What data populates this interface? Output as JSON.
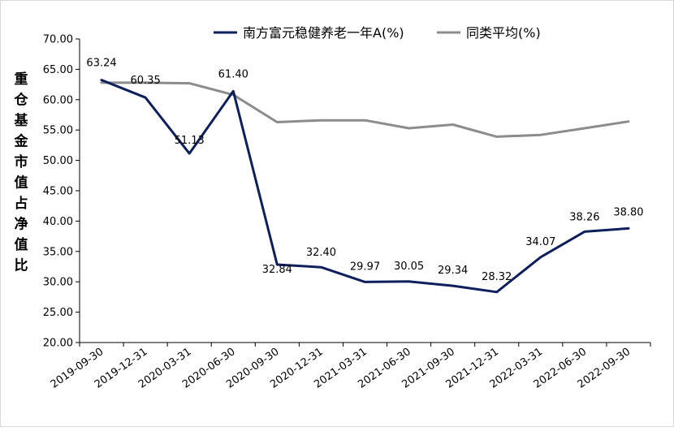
{
  "chart_data": {
    "type": "line",
    "ylabel": "重仓基金市值占净值比",
    "ylim": [
      20,
      70
    ],
    "ytick_step": 5,
    "ytick_labels": [
      "20.00",
      "25.00",
      "30.00",
      "35.00",
      "40.00",
      "45.00",
      "50.00",
      "55.00",
      "60.00",
      "65.00",
      "70.00"
    ],
    "categories": [
      "2019-09-30",
      "2019-12-31",
      "2020-03-31",
      "2020-06-30",
      "2020-09-30",
      "2020-12-31",
      "2021-03-31",
      "2021-06-30",
      "2021-09-30",
      "2021-12-31",
      "2022-03-31",
      "2022-06-30",
      "2022-09-30"
    ],
    "series": [
      {
        "name": "南方富元稳健养老一年A(%)",
        "color": "#0d1f5c",
        "values": [
          63.24,
          60.35,
          51.13,
          61.4,
          32.84,
          32.4,
          29.97,
          30.05,
          29.34,
          28.32,
          34.07,
          38.26,
          38.8
        ],
        "labels": [
          "63.24",
          "60.35",
          "51.13",
          "61.40",
          "32.84",
          "32.40",
          "29.97",
          "30.05",
          "29.34",
          "28.32",
          "34.07",
          "38.26",
          "38.80"
        ]
      },
      {
        "name": "同类平均(%)",
        "color": "#8c8c8c",
        "values": [
          62.8,
          62.8,
          62.7,
          60.8,
          56.3,
          56.6,
          56.6,
          55.3,
          55.9,
          53.9,
          54.2,
          55.3,
          56.4
        ]
      }
    ],
    "legend_position": "top-center",
    "grid": false
  }
}
